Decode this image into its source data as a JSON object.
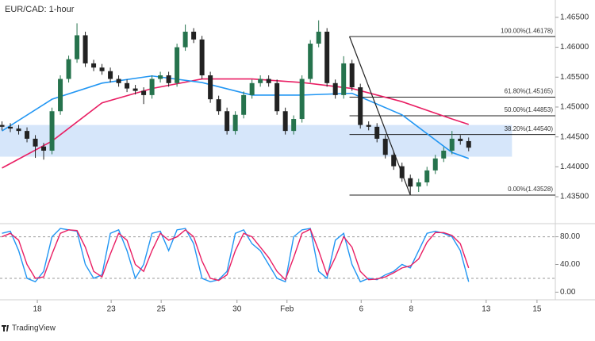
{
  "chart_data": [
    {
      "type": "candlestick",
      "title": "EUR/CAD: 1-hour",
      "x": [
        0,
        1,
        2,
        3,
        4,
        5,
        6,
        7,
        8,
        9,
        10,
        11,
        12,
        13,
        14,
        15,
        16,
        17,
        18,
        19,
        20,
        21,
        22,
        23,
        24,
        25,
        26,
        27,
        28,
        29,
        30,
        31,
        32,
        33,
        34,
        35,
        36,
        37,
        38,
        39,
        40,
        41,
        42,
        43,
        44,
        45,
        46,
        47,
        48,
        49,
        50,
        51,
        52,
        53,
        54,
        55,
        56
      ],
      "open": [
        1.447,
        1.4467,
        1.4464,
        1.446,
        1.4447,
        1.4434,
        1.4427,
        1.4493,
        1.4547,
        1.458,
        1.462,
        1.4573,
        1.4566,
        1.456,
        1.4547,
        1.454,
        1.4531,
        1.4527,
        1.452,
        1.4547,
        1.4553,
        1.454,
        1.46,
        1.4626,
        1.4613,
        1.4553,
        1.4513,
        1.4493,
        1.446,
        1.4487,
        1.452,
        1.454,
        1.4547,
        1.454,
        1.4493,
        1.446,
        1.448,
        1.4547,
        1.4606,
        1.4626,
        1.454,
        1.452,
        1.4573,
        1.4533,
        1.447,
        1.4467,
        1.4447,
        1.442,
        1.4401,
        1.4381,
        1.4367,
        1.4374,
        1.4394,
        1.4414,
        1.4427,
        1.4447,
        1.4443
      ],
      "high": [
        1.4476,
        1.4473,
        1.447,
        1.4466,
        1.4453,
        1.444,
        1.4499,
        1.4553,
        1.4586,
        1.464,
        1.4626,
        1.4579,
        1.4572,
        1.4566,
        1.4553,
        1.4546,
        1.4537,
        1.4533,
        1.4553,
        1.4559,
        1.4559,
        1.4606,
        1.4638,
        1.4632,
        1.4619,
        1.4559,
        1.4519,
        1.4499,
        1.4493,
        1.4526,
        1.4546,
        1.4553,
        1.4553,
        1.4546,
        1.4499,
        1.4486,
        1.4553,
        1.4612,
        1.4645,
        1.4632,
        1.4546,
        1.4585,
        1.4579,
        1.4539,
        1.4476,
        1.4473,
        1.4453,
        1.4426,
        1.4407,
        1.4387,
        1.438,
        1.44,
        1.442,
        1.4433,
        1.446,
        1.4453,
        1.4449
      ],
      "low": [
        1.4461,
        1.4458,
        1.4454,
        1.4441,
        1.4415,
        1.4412,
        1.4421,
        1.4487,
        1.4541,
        1.4574,
        1.4567,
        1.456,
        1.4554,
        1.4541,
        1.4534,
        1.4525,
        1.4521,
        1.4505,
        1.4514,
        1.4541,
        1.4534,
        1.4534,
        1.4594,
        1.4607,
        1.4547,
        1.4507,
        1.4487,
        1.4454,
        1.4454,
        1.4481,
        1.4514,
        1.4534,
        1.4534,
        1.4487,
        1.4454,
        1.4454,
        1.4474,
        1.4541,
        1.46,
        1.4534,
        1.4514,
        1.4514,
        1.4527,
        1.4464,
        1.4461,
        1.4441,
        1.4414,
        1.4395,
        1.4375,
        1.4353,
        1.4358,
        1.4368,
        1.4388,
        1.4408,
        1.4421,
        1.4437,
        1.4426
      ],
      "close": [
        1.4467,
        1.4464,
        1.446,
        1.4447,
        1.4434,
        1.4427,
        1.4493,
        1.4547,
        1.458,
        1.462,
        1.4573,
        1.4566,
        1.456,
        1.4547,
        1.454,
        1.4531,
        1.4527,
        1.452,
        1.4547,
        1.4553,
        1.454,
        1.46,
        1.4626,
        1.4613,
        1.4553,
        1.4513,
        1.4493,
        1.446,
        1.4487,
        1.452,
        1.454,
        1.4547,
        1.454,
        1.4493,
        1.446,
        1.448,
        1.4547,
        1.4606,
        1.4626,
        1.454,
        1.452,
        1.4573,
        1.4533,
        1.447,
        1.4467,
        1.4447,
        1.442,
        1.4401,
        1.4381,
        1.4367,
        1.4374,
        1.4394,
        1.4414,
        1.4427,
        1.4447,
        1.4443,
        1.4432
      ],
      "up_color": "#26734d",
      "down_color": "#222222",
      "series": [
        {
          "color": "#e91e63",
          "x": [
            0,
            6,
            12,
            18,
            24,
            30,
            36,
            42,
            48,
            54,
            56
          ],
          "values": [
            1.4398,
            1.4443,
            1.4507,
            1.4531,
            1.4547,
            1.4547,
            1.4541,
            1.4531,
            1.4509,
            1.448,
            1.4471
          ]
        },
        {
          "color": "#2196f3",
          "x": [
            0,
            6,
            12,
            18,
            24,
            30,
            36,
            42,
            48,
            54,
            56
          ],
          "values": [
            1.446,
            1.4513,
            1.454,
            1.4552,
            1.4541,
            1.452,
            1.452,
            1.4523,
            1.4487,
            1.4424,
            1.4414
          ]
        }
      ],
      "zone": {
        "x": [
          -0.24,
          61.2
        ],
        "y": [
          1.4417,
          1.447
        ],
        "color": "#d6e6fa"
      },
      "trendline": {
        "x": [
          41.7,
          49
        ],
        "y": [
          1.46178,
          1.43528
        ]
      },
      "fib_start": 41.7,
      "fib_levels": [
        {
          "value": 1.46178,
          "label": "100.00%(1.46178)"
        },
        {
          "value": 1.45165,
          "label": "61.80%(1.45165)"
        },
        {
          "value": 1.44853,
          "label": "50.00%(1.44853)"
        },
        {
          "value": 1.4454,
          "label": "38.20%(1.44540)"
        },
        {
          "value": 1.43528,
          "label": "0.00%(1.43528)"
        }
      ],
      "xlim": [
        -0.24,
        66.4
      ],
      "ylim": [
        1.4305,
        1.4679
      ],
      "yticks": [
        {
          "value": 1.465,
          "label": "1.46500"
        },
        {
          "value": 1.46,
          "label": "1.46000"
        },
        {
          "value": 1.455,
          "label": "1.45500"
        },
        {
          "value": 1.45,
          "label": "1.45000"
        },
        {
          "value": 1.445,
          "label": "1.44500"
        },
        {
          "value": 1.44,
          "label": "1.44000"
        },
        {
          "value": 1.435,
          "label": "1.43500"
        }
      ]
    },
    {
      "type": "line",
      "x": [
        0,
        1,
        2,
        3,
        4,
        5,
        6,
        7,
        8,
        9,
        10,
        11,
        12,
        13,
        14,
        15,
        16,
        17,
        18,
        19,
        20,
        21,
        22,
        23,
        24,
        25,
        26,
        27,
        28,
        29,
        30,
        31,
        32,
        33,
        34,
        35,
        36,
        37,
        38,
        39,
        40,
        41,
        42,
        43,
        44,
        45,
        46,
        47,
        48,
        49,
        50,
        51,
        52,
        53,
        54,
        55,
        56
      ],
      "series": [
        {
          "color": "#2196f3",
          "values": [
            85,
            88,
            60,
            20,
            15,
            30,
            80,
            92,
            90,
            88,
            40,
            20,
            25,
            85,
            90,
            60,
            20,
            40,
            85,
            88,
            60,
            90,
            92,
            70,
            20,
            15,
            18,
            30,
            85,
            90,
            70,
            60,
            40,
            20,
            15,
            80,
            90,
            92,
            30,
            20,
            75,
            85,
            40,
            15,
            20,
            18,
            25,
            30,
            40,
            35,
            60,
            85,
            88,
            85,
            80,
            60,
            15
          ]
        },
        {
          "color": "#e91e63",
          "values": [
            80,
            85,
            75,
            40,
            20,
            22,
            55,
            85,
            90,
            89,
            65,
            30,
            22,
            55,
            85,
            75,
            40,
            30,
            60,
            85,
            75,
            80,
            90,
            80,
            45,
            20,
            17,
            25,
            60,
            85,
            80,
            65,
            50,
            30,
            18,
            50,
            85,
            91,
            60,
            25,
            50,
            80,
            65,
            30,
            18,
            19,
            22,
            28,
            35,
            38,
            48,
            72,
            86,
            86,
            82,
            70,
            35
          ]
        }
      ],
      "levels": [
        80,
        20
      ],
      "xlim": [
        -0.24,
        66.4
      ],
      "ylim": [
        -11,
        99
      ],
      "yticks": [
        {
          "value": 80,
          "label": "80.00"
        },
        {
          "value": 40,
          "label": "40.00"
        },
        {
          "value": 0,
          "label": "0.00"
        }
      ],
      "xticks": [
        {
          "value": 4.24,
          "label": "18"
        },
        {
          "value": 13.1,
          "label": "23"
        },
        {
          "value": 19.1,
          "label": "25"
        },
        {
          "value": 28.2,
          "label": "30"
        },
        {
          "value": 34.2,
          "label": "Feb"
        },
        {
          "value": 43.1,
          "label": "6"
        },
        {
          "value": 49.1,
          "label": "8"
        },
        {
          "value": 58.1,
          "label": "13"
        },
        {
          "value": 64.2,
          "label": "15"
        }
      ]
    }
  ],
  "footer": {
    "brand": "TradingView"
  }
}
